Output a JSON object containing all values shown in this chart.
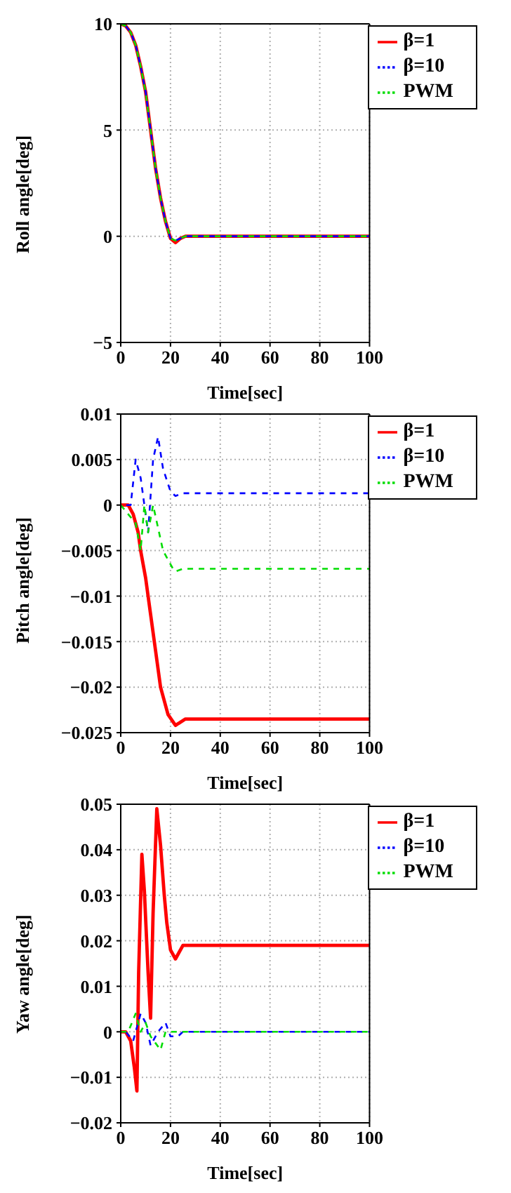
{
  "chart_data": [
    {
      "type": "line",
      "xlabel": "Time[sec]",
      "ylabel": "Roll angle[deg]",
      "xlim": [
        0,
        100
      ],
      "xticks": [
        0,
        20,
        40,
        60,
        80,
        100
      ],
      "ylim": [
        -5,
        10
      ],
      "yticks": [
        -5,
        0,
        5,
        10
      ],
      "grid": true,
      "legend": "top right",
      "marker": "none",
      "series": [
        {
          "name": "β=1",
          "color": "#ff0000",
          "line_style": "solid",
          "x": [
            0,
            2,
            4,
            6,
            8,
            10,
            12,
            14,
            16,
            18,
            20,
            22,
            24,
            26,
            100
          ],
          "values": [
            10,
            9.9,
            9.6,
            9.0,
            8.0,
            6.8,
            5.0,
            3.2,
            1.8,
            0.7,
            -0.1,
            -0.3,
            -0.1,
            0,
            0
          ]
        },
        {
          "name": "β=10",
          "color": "#0000ff",
          "line_style": "dashed",
          "x": [
            0,
            2,
            4,
            6,
            8,
            10,
            12,
            14,
            16,
            18,
            20,
            22,
            24,
            26,
            100
          ],
          "values": [
            10,
            9.9,
            9.6,
            9.0,
            8.0,
            6.8,
            5.0,
            3.2,
            1.8,
            0.7,
            -0.1,
            -0.2,
            -0.1,
            0,
            0
          ]
        },
        {
          "name": "PWM",
          "color": "#00dd00",
          "line_style": "dashed",
          "x": [
            0,
            2,
            4,
            6,
            8,
            10,
            12,
            14,
            16,
            18,
            20,
            22,
            24,
            26,
            100
          ],
          "values": [
            10,
            9.9,
            9.6,
            9.0,
            8.0,
            6.8,
            5.0,
            3.2,
            1.8,
            0.7,
            -0.1,
            -0.2,
            -0.1,
            0,
            0
          ]
        }
      ]
    },
    {
      "type": "line",
      "xlabel": "Time[sec]",
      "ylabel": "Pitch angle[deg]",
      "xlim": [
        0,
        100
      ],
      "xticks": [
        0,
        20,
        40,
        60,
        80,
        100
      ],
      "ylim": [
        -0.025,
        0.01
      ],
      "yticks": [
        -0.025,
        -0.02,
        -0.015,
        -0.01,
        -0.005,
        0,
        0.005,
        0.01
      ],
      "grid": true,
      "legend": "top right",
      "marker": "none",
      "series": [
        {
          "name": "β=1",
          "color": "#ff0000",
          "line_style": "solid",
          "x": [
            0,
            3,
            5,
            7,
            8,
            10,
            12,
            14,
            16,
            19,
            22,
            26,
            100
          ],
          "values": [
            0,
            0,
            -0.001,
            -0.003,
            -0.005,
            -0.008,
            -0.012,
            -0.016,
            -0.02,
            -0.023,
            -0.0242,
            -0.0235,
            -0.0235
          ]
        },
        {
          "name": "β=10",
          "color": "#0000ff",
          "line_style": "dashed",
          "x": [
            0,
            4,
            6,
            8,
            11,
            13,
            15,
            17,
            20,
            22,
            25,
            100
          ],
          "values": [
            0,
            0,
            0.005,
            0.003,
            -0.003,
            0.005,
            0.0075,
            0.004,
            0.0015,
            0.001,
            0.0013,
            0.0013
          ]
        },
        {
          "name": "PWM",
          "color": "#00dd00",
          "line_style": "dashed",
          "x": [
            0,
            6,
            8,
            9.5,
            11,
            13,
            17,
            21,
            22,
            25,
            100
          ],
          "values": [
            0,
            -0.002,
            -0.005,
            0,
            -0.003,
            0,
            -0.005,
            -0.007,
            -0.0073,
            -0.007,
            -0.007
          ]
        }
      ]
    },
    {
      "type": "line",
      "xlabel": "Time[sec]",
      "ylabel": "Yaw angle[deg]",
      "xlim": [
        0,
        100
      ],
      "xticks": [
        0,
        20,
        40,
        60,
        80,
        100
      ],
      "ylim": [
        -0.02,
        0.05
      ],
      "yticks": [
        -0.02,
        -0.01,
        0,
        0.01,
        0.02,
        0.03,
        0.04,
        0.05
      ],
      "grid": true,
      "legend": "top right",
      "marker": "none",
      "series": [
        {
          "name": "β=1",
          "color": "#ff0000",
          "line_style": "solid",
          "x": [
            0,
            2,
            4,
            5.5,
            6.5,
            7.2,
            8.5,
            9.5,
            11,
            12,
            13,
            14.5,
            16,
            17.5,
            18.5,
            20,
            22,
            25,
            100
          ],
          "values": [
            0,
            0,
            -0.002,
            -0.008,
            -0.013,
            0.013,
            0.039,
            0.031,
            0.013,
            0.003,
            0.026,
            0.049,
            0.041,
            0.03,
            0.024,
            0.018,
            0.016,
            0.019,
            0.019
          ]
        },
        {
          "name": "β=10",
          "color": "#0000ff",
          "line_style": "dashed",
          "x": [
            0,
            2,
            5,
            8,
            10,
            12,
            15,
            18,
            20,
            23,
            25,
            100
          ],
          "values": [
            0,
            0,
            -0.002,
            0.004,
            0.002,
            -0.003,
            0,
            0.002,
            -0.001,
            -0.001,
            0,
            0
          ]
        },
        {
          "name": "PWM",
          "color": "#00dd00",
          "line_style": "dashed",
          "x": [
            0,
            3,
            6,
            8,
            10,
            12,
            16,
            18,
            100
          ],
          "values": [
            0,
            0,
            0.004,
            0,
            0.002,
            -0.001,
            -0.004,
            0,
            0
          ]
        }
      ]
    }
  ]
}
